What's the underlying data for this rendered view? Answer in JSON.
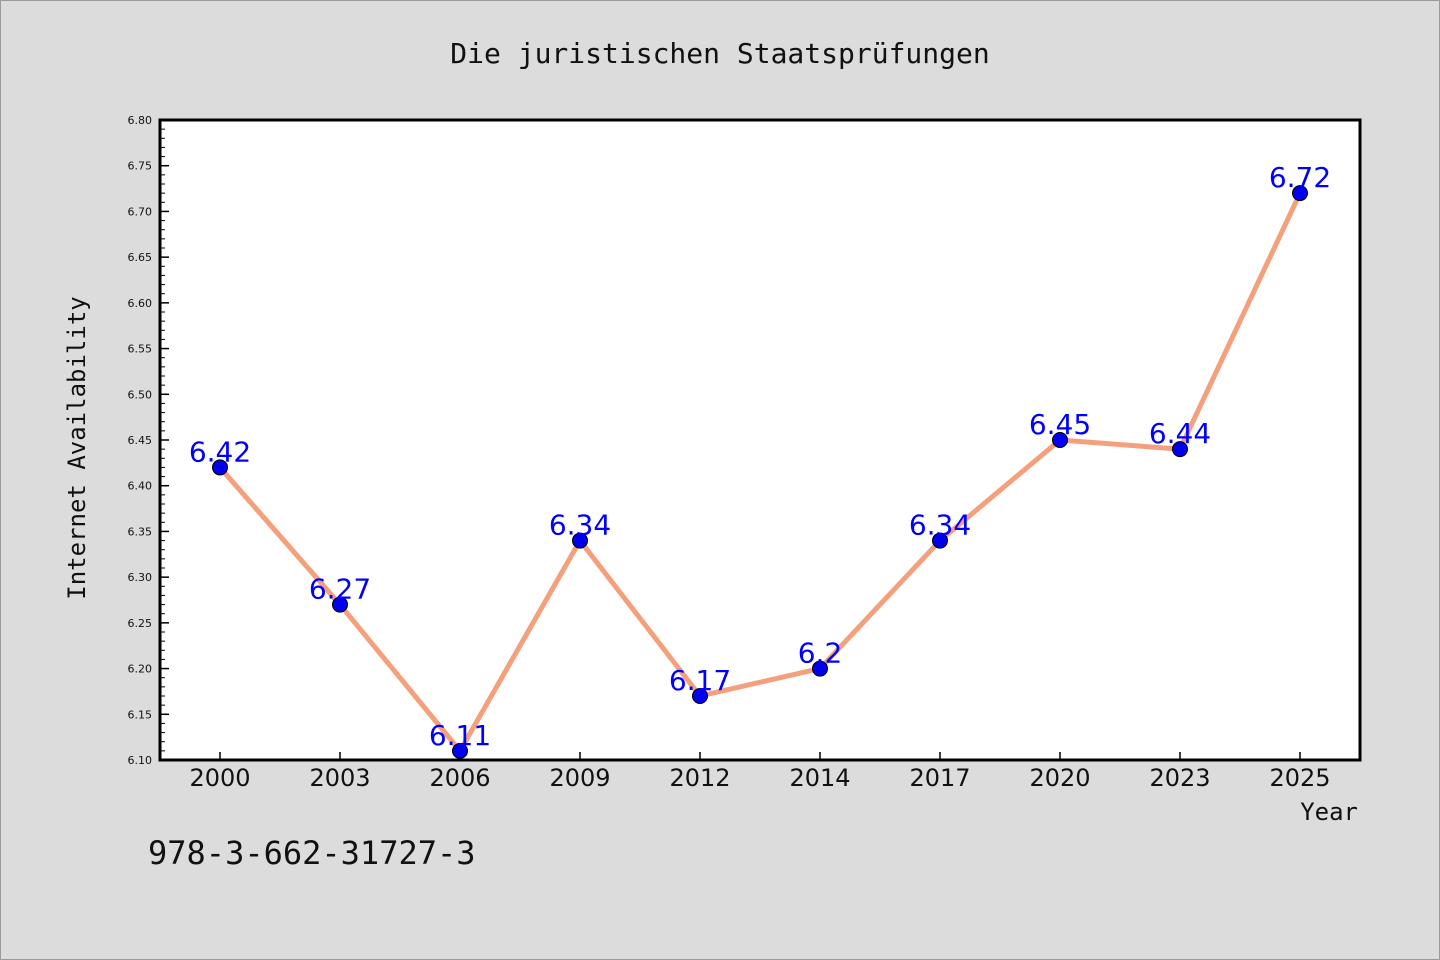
{
  "chart_data": {
    "type": "line",
    "title": "Die juristischen Staatsprüfungen",
    "xlabel": "Year",
    "ylabel": "Internet Availability",
    "categories": [
      "2000",
      "2003",
      "2006",
      "2009",
      "2012",
      "2014",
      "2017",
      "2020",
      "2023",
      "2025"
    ],
    "values": [
      6.42,
      6.27,
      6.11,
      6.34,
      6.17,
      6.2,
      6.34,
      6.45,
      6.44,
      6.72
    ],
    "data_labels": [
      "6.42",
      "6.27",
      "6.11",
      "6.34",
      "6.17",
      "6.2",
      "6.34",
      "6.45",
      "6.44",
      "6.72"
    ],
    "ylim": [
      6.1,
      6.8
    ],
    "yticks": [
      "6.10",
      "6.15",
      "6.20",
      "6.25",
      "6.30",
      "6.35",
      "6.40",
      "6.45",
      "6.50",
      "6.55",
      "6.60",
      "6.65",
      "6.70",
      "6.75",
      "6.80"
    ],
    "grid": false,
    "annotation": "978-3-662-31727-3",
    "colors": {
      "line": "#f4a07c",
      "marker": "#0000ee",
      "label": "#0000ff",
      "plot_background": "#ffffff",
      "page_background": "#dcdcdc"
    }
  }
}
